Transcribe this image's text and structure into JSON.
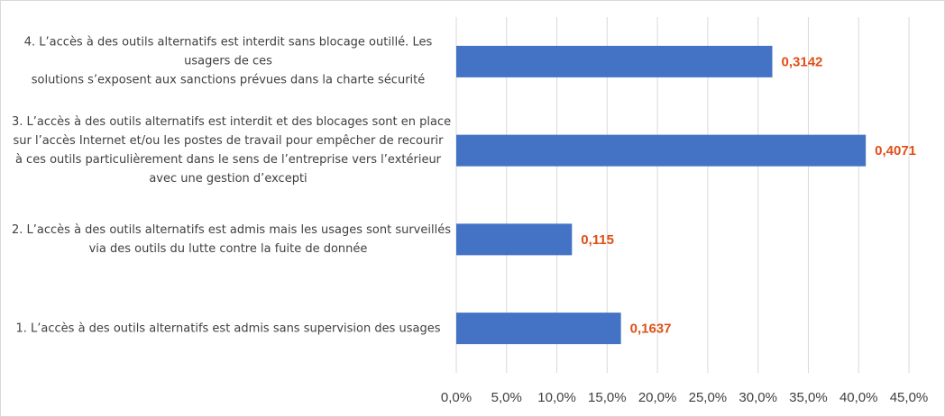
{
  "chart_data": {
    "type": "bar",
    "orientation": "horizontal",
    "categories": [
      [
        "1. L’accès à des outils alternatifs est admis sans supervision des usages"
      ],
      [
        "2. L’accès à des outils alternatifs est admis mais les usages sont surveillés",
        "via des outils du lutte contre la fuite de donnée"
      ],
      [
        "3. L’accès à des outils alternatifs est interdit et des blocages sont en place",
        "sur l’accès Internet et/ou les postes de travail pour empêcher de recourir",
        "à ces outils particulièrement dans le sens de l’entreprise vers l’extérieur",
        "avec une gestion d’excepti"
      ],
      [
        "4. L’accès à des outils alternatifs est interdit sans blocage outillé. Les",
        "usagers de ces",
        "solutions s’exposent aux sanctions prévues dans la charte sécurité"
      ]
    ],
    "values": [
      0.1637,
      0.115,
      0.4071,
      0.3142
    ],
    "data_labels": [
      "0,1637",
      "0,115",
      "0,4071",
      "0,3142"
    ],
    "x_ticks": [
      "0,0%",
      "5,0%",
      "10,0%",
      "15,0%",
      "20,0%",
      "25,0%",
      "30,0%",
      "35,0%",
      "40,0%",
      "45,0%"
    ],
    "xlim": [
      0,
      0.45
    ],
    "grid": "vertical",
    "title": "",
    "xlabel": "",
    "ylabel": "",
    "colors": {
      "bar": "#4472c4",
      "data_label": "#e04f16",
      "grid": "#d9d9d9",
      "axis_text": "#404040"
    }
  }
}
